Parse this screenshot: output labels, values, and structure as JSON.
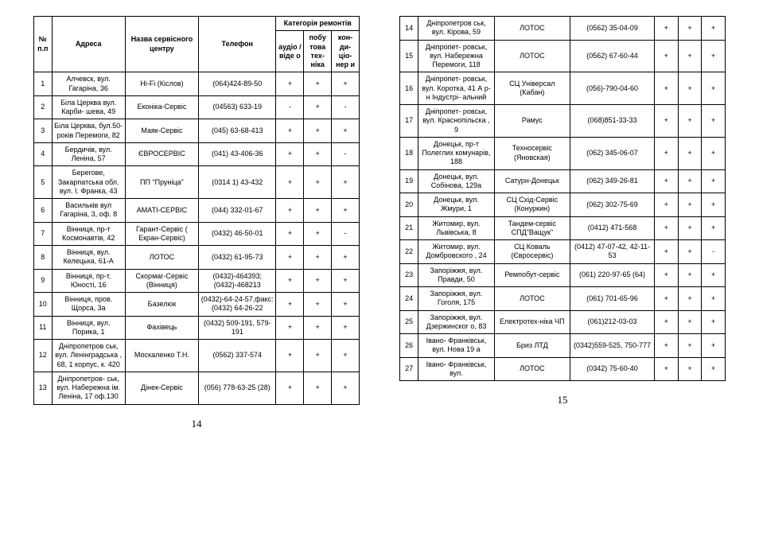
{
  "headers": {
    "num": "№ п.п",
    "addr": "Адреса",
    "name": "Назва сервісного центру",
    "phone": "Телефон",
    "catgroup": "Категорія ремонтів",
    "cat1": "аудіо / віде о",
    "cat2": "побу това тех- ніка",
    "cat3": "кон- ди- ціо- нер и"
  },
  "pageLeft": "14",
  "pageRight": "15",
  "rowsLeft": [
    {
      "n": "1",
      "addr": "Алчевск, вул. Гагаріна, 36",
      "name": "Hi-Fi (Кіслов)",
      "phone": "(064)424-89-50",
      "c": [
        "+",
        "+",
        "+"
      ]
    },
    {
      "n": "2",
      "addr": "Біла Церква вул. Карби- шева, 49",
      "name": "Еконіка-Сервіс",
      "phone": "(04563) 633-19",
      "c": [
        "-",
        "+",
        "-"
      ]
    },
    {
      "n": "3",
      "addr": "Біла Церква, бул.50- років Перемоги, 82",
      "name": "Маяк-Сервіс",
      "phone": "(045) 63-68-413",
      "c": [
        "+",
        "+",
        "+"
      ]
    },
    {
      "n": "4",
      "addr": "Бердичів, вул. Леніна, 57",
      "name": "ЄВРОСЕРВІС",
      "phone": "(041) 43-406-36",
      "c": [
        "+",
        "+",
        "-"
      ]
    },
    {
      "n": "5",
      "addr": "Берегове, Закарпатська обл. вул. І. Франка, 43",
      "name": "ПП \"Пруніца\"",
      "phone": "(0314 1) 43-432",
      "c": [
        "+",
        "+",
        "+"
      ]
    },
    {
      "n": "6",
      "addr": "Васильків вул Гагаріна, 3, оф. 8",
      "name": "АМАТІ-СЕРВІС",
      "phone": "(044) 332-01-67",
      "c": [
        "+",
        "+",
        "+"
      ]
    },
    {
      "n": "7",
      "addr": "Вінниця, пр-т Космонавтів, 42",
      "name": "Гарант-Сервіс ( Екран-Сервіс)",
      "phone": "(0432) 46-50-01",
      "c": [
        "+",
        "+",
        "-"
      ]
    },
    {
      "n": "8",
      "addr": "Вінниця, вул. Келецька, 61-А",
      "name": "ЛОТОС",
      "phone": "(0432) 61-95-73",
      "c": [
        "+",
        "+",
        "+"
      ]
    },
    {
      "n": "9",
      "addr": "Вінниця, пр-т. Юності, 16",
      "name": "Скормаг-Сервіс (Вінниця)",
      "phone": "(0432)-464393; (0432)-468213",
      "c": [
        "+",
        "+",
        "+"
      ]
    },
    {
      "n": "10",
      "addr": "Вінниця, пров. Щорса, 3а",
      "name": "Базелюк",
      "phone": "(0432)-64-24-57,факс: (0432) 64-26-22",
      "c": [
        "+",
        "+",
        "+"
      ]
    },
    {
      "n": "11",
      "addr": "Вінниця, вул. Порика, 1",
      "name": "Фахівець",
      "phone": "(0432) 509-191, 579-191",
      "c": [
        "+",
        "+",
        "+"
      ]
    },
    {
      "n": "12",
      "addr": "Дніпропетров ськ, вул. Ленінградська , 68, 1 корпус, к. 420",
      "name": "Москаленко Т.Н.",
      "phone": "(0562) 337-574",
      "c": [
        "+",
        "+",
        "+"
      ]
    },
    {
      "n": "13",
      "addr": "Дніпропетров- ськ, вул. Набережна ім. Леніна, 17 оф.130",
      "name": "Дінек-Сервіс",
      "phone": "(056) 778-63-25 (28)",
      "c": [
        "+",
        "+",
        "+"
      ]
    }
  ],
  "rowsRight": [
    {
      "n": "14",
      "addr": "Дніпропетров ськ, вул. Кірова, 59",
      "name": "ЛОТОС",
      "phone": "(0562) 35-04-09",
      "c": [
        "+",
        "+",
        "+"
      ]
    },
    {
      "n": "15",
      "addr": "Дніпропет- ровськ, вул. Набережна Перемоги, 118",
      "name": "ЛОТОС",
      "phone": "(0562) 67-60-44",
      "c": [
        "+",
        "+",
        "+"
      ]
    },
    {
      "n": "16",
      "addr": "Дніпропет- ровськ, вул. Коротка, 41 А р-н Індустрі- альний",
      "name": "СЦ Універсал (Кабан)",
      "phone": "(056)-790-04-60",
      "c": [
        "+",
        "+",
        "+"
      ]
    },
    {
      "n": "17",
      "addr": "Дніпропет- ровськ, вул. Краснопільска , 9",
      "name": "Рамус",
      "phone": "(068)851-33-33",
      "c": [
        "+",
        "+",
        "+"
      ]
    },
    {
      "n": "18",
      "addr": "Донецьк, пр-т Полеглих комунарів, 188",
      "name": "Техносервіс (Яновская)",
      "phone": "(062) 345-06-07",
      "c": [
        "+",
        "+",
        "+"
      ]
    },
    {
      "n": "19",
      "addr": "Донецьк, вул. Собінова, 129а",
      "name": "Сатурн-Донецьк",
      "phone": "(062) 349-26-81",
      "c": [
        "+",
        "+",
        "+"
      ]
    },
    {
      "n": "20",
      "addr": "Донецьк, вул. Жмури, 1",
      "name": "СЦ Схід-Сервіс (Конуркин)",
      "phone": "(062) 302-75-69",
      "c": [
        "+",
        "+",
        "+"
      ]
    },
    {
      "n": "21",
      "addr": "Житомир, вул. Львівська, 8",
      "name": "Тандем-сервіс СПД\"Ващук\"",
      "phone": "(0412) 471-568",
      "c": [
        "+",
        "+",
        "+"
      ]
    },
    {
      "n": "22",
      "addr": "Житомир, вул. Домбровского , 24",
      "name": "СЦ Коваль (Євросервіс)",
      "phone": "(0412) 47-07-42, 42-11-53",
      "c": [
        "+",
        "+",
        "-"
      ]
    },
    {
      "n": "23",
      "addr": "Запоріжжя, вул. Правди, 50",
      "name": "Ремпобут-сервіс",
      "phone": "(061) 220-97-65 (64)",
      "c": [
        "+",
        "+",
        "+"
      ]
    },
    {
      "n": "24",
      "addr": "Запоріжжя, вул. Гоголя, 175",
      "name": "ЛОТОС",
      "phone": "(061) 701-65-96",
      "c": [
        "+",
        "+",
        "+"
      ]
    },
    {
      "n": "25",
      "addr": "Запоріжжя, вул. Дзержинског о, 83",
      "name": "Електротех-ніка ЧП",
      "phone": "(061)212-03-03",
      "c": [
        "+",
        "+",
        "+"
      ]
    },
    {
      "n": "26",
      "addr": "Івано- Франківськ, вул. Нова 19 а",
      "name": "Бриз ЛТД",
      "phone": "(0342)559-525, 750-777",
      "c": [
        "+",
        "+",
        "+"
      ]
    },
    {
      "n": "27",
      "addr": "Івано- Франківськ, вул.",
      "name": "ЛОТОС",
      "phone": "(0342) 75-60-40",
      "c": [
        "+",
        "+",
        "+"
      ]
    }
  ]
}
